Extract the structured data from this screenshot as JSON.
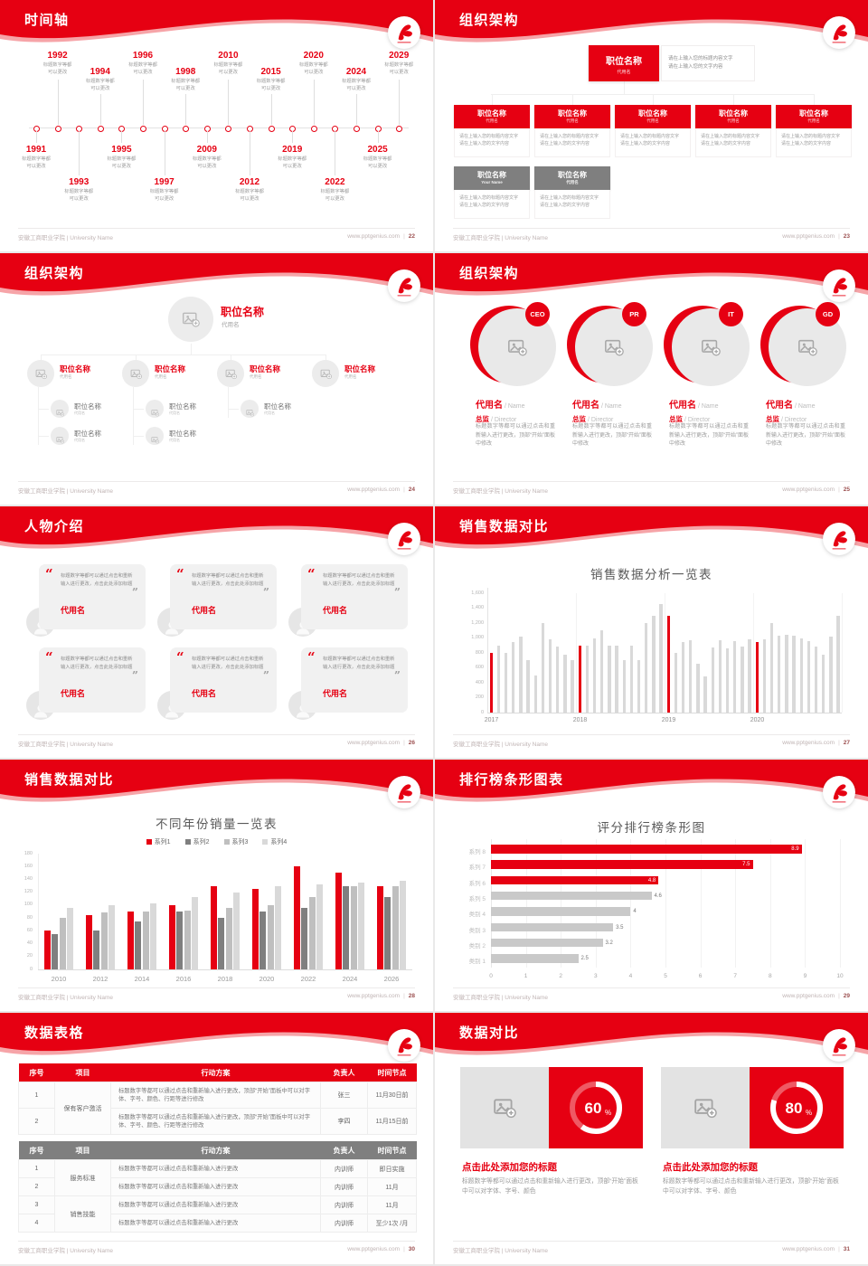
{
  "footer": {
    "left": "安徽工商职业学院 | University Name",
    "site": "www.pptgenius.com",
    "sep": "|"
  },
  "colors": {
    "red": "#e60012",
    "red_shadow": "#ee5a60",
    "gray_dark": "#7f7f7f",
    "gray_mid": "#bfbfbf",
    "gray_light": "#d9d9d9",
    "page_bg": "#e9e9e9"
  },
  "icons": {
    "logo": "university-logo-icon",
    "picture": "picture-placeholder-icon",
    "person": "person-icon",
    "quote": "quote-icon"
  },
  "slides": [
    {
      "type": "timeline",
      "title": "时间轴",
      "page": "22",
      "note_line1": "标题数字等都",
      "note_line2": "可以更改",
      "items": [
        {
          "year": "1991",
          "pos": "b",
          "level": 1
        },
        {
          "year": "1992",
          "pos": "t",
          "level": 1
        },
        {
          "year": "1993",
          "pos": "b",
          "level": 2
        },
        {
          "year": "1994",
          "pos": "t",
          "level": 2
        },
        {
          "year": "1995",
          "pos": "b",
          "level": 1
        },
        {
          "year": "1996",
          "pos": "t",
          "level": 1
        },
        {
          "year": "1997",
          "pos": "b",
          "level": 2
        },
        {
          "year": "1998",
          "pos": "t",
          "level": 2
        },
        {
          "year": "2009",
          "pos": "b",
          "level": 1
        },
        {
          "year": "2010",
          "pos": "t",
          "level": 1
        },
        {
          "year": "2012",
          "pos": "b",
          "level": 2
        },
        {
          "year": "2015",
          "pos": "t",
          "level": 2
        },
        {
          "year": "2019",
          "pos": "b",
          "level": 1
        },
        {
          "year": "2020",
          "pos": "t",
          "level": 1
        },
        {
          "year": "2022",
          "pos": "b",
          "level": 2
        },
        {
          "year": "2024",
          "pos": "t",
          "level": 2
        },
        {
          "year": "2025",
          "pos": "b",
          "level": 1
        },
        {
          "year": "2029",
          "pos": "t",
          "level": 1
        }
      ]
    },
    {
      "type": "orgBoxes",
      "title": "组织架构",
      "page": "23",
      "root": {
        "title": "职位名称",
        "sub": "代用名"
      },
      "root_note": [
        "请在上输入您的标题内容文字",
        "请在上输入您的文字内容"
      ],
      "note": [
        "请在上输入您的标题内容文字",
        "请在上输入您的文字内容"
      ],
      "level2": [
        {
          "title": "职位名称",
          "sub": "代用名"
        },
        {
          "title": "职位名称",
          "sub": "代用名"
        },
        {
          "title": "职位名称",
          "sub": "代用名"
        },
        {
          "title": "职位名称",
          "sub": "代用名"
        },
        {
          "title": "职位名称",
          "sub": "代用名"
        }
      ],
      "level3": [
        {
          "title": "职位名称",
          "sub": "Your Name"
        },
        {
          "title": "职位名称",
          "sub": "代用名"
        }
      ]
    },
    {
      "type": "orgTree",
      "title": "组织架构",
      "page": "24",
      "root": {
        "title": "职位名称",
        "sub": "代用名"
      },
      "children": [
        {
          "title": "职位名称",
          "sub": "代用名",
          "subs": [
            {
              "title": "职位名称",
              "sub": "代用名"
            },
            {
              "title": "职位名称",
              "sub": "代用名"
            }
          ]
        },
        {
          "title": "职位名称",
          "sub": "代用名",
          "subs": [
            {
              "title": "职位名称",
              "sub": "代用名"
            },
            {
              "title": "职位名称",
              "sub": "代用名"
            }
          ]
        },
        {
          "title": "职位名称",
          "sub": "代用名",
          "subs": [
            {
              "title": "职位名称",
              "sub": "代用名"
            }
          ]
        },
        {
          "title": "职位名称",
          "sub": "代用名",
          "subs": []
        }
      ]
    },
    {
      "type": "orgCircles",
      "title": "组织架构",
      "page": "25",
      "body": "标题数字等都可以通过点击和重新输入进行更改，顶部“开始”面板中修改",
      "items": [
        {
          "badge": "CEO",
          "name": "代用名",
          "name_en": " / Name",
          "role": "总监",
          "role_en": " / Director"
        },
        {
          "badge": "PR",
          "name": "代用名",
          "name_en": " / Name",
          "role": "总监",
          "role_en": " / Director"
        },
        {
          "badge": "IT",
          "name": "代用名",
          "name_en": " / Name",
          "role": "总监",
          "role_en": " / Director"
        },
        {
          "badge": "GD",
          "name": "代用名",
          "name_en": " / Name",
          "role": "总监",
          "role_en": " / Director"
        }
      ]
    },
    {
      "type": "people",
      "title": "人物介绍",
      "page": "26",
      "cards": [
        {
          "quote": "标题数字等都可以通过点击和重新输入进行更改，点击此处添加标题",
          "name": "代用名"
        },
        {
          "quote": "标题数字等都可以通过点击和重新输入进行更改，点击此处添加标题",
          "name": "代用名"
        },
        {
          "quote": "标题数字等都可以通过点击和重新输入进行更改，点击此处添加标题",
          "name": "代用名"
        },
        {
          "quote": "标题数字等都可以通过点击和重新输入进行更改，点击此处添加标题",
          "name": "代用名"
        },
        {
          "quote": "标题数字等都可以通过点击和重新输入进行更改，点击此处添加标题",
          "name": "代用名"
        },
        {
          "quote": "标题数字等都可以通过点击和重新输入进行更改，点击此处添加标题",
          "name": "代用名"
        }
      ]
    },
    {
      "type": "chartMonthly",
      "title": "销售数据对比",
      "page": "27",
      "chart_ref": 0
    },
    {
      "type": "chartGrouped",
      "title": "销售数据对比",
      "page": "28",
      "chart_ref": 1
    },
    {
      "type": "chartHbar",
      "title": "排行榜条形图表",
      "page": "29",
      "chart_ref": 2
    },
    {
      "type": "tables",
      "title": "数据表格",
      "page": "30",
      "columns": [
        "序号",
        "项目",
        "行动方案",
        "负责人",
        "时间节点"
      ],
      "table1": {
        "header_color": "#e60012",
        "rows": [
          {
            "no": "1",
            "project": "保有客户激活",
            "span": 2,
            "plan": "标题数字等都可以通过点击和重新输入进行更改，顶部“开始”面板中可以对字体、字号、颜色、行距等进行修改",
            "owner": "张三",
            "time": "11月30日前"
          },
          {
            "no": "2",
            "project": "",
            "plan": "标题数字等都可以通过点击和重新输入进行更改，顶部“开始”面板中可以对字体、字号、颜色、行距等进行修改",
            "owner": "李四",
            "time": "11月15日前"
          }
        ]
      },
      "table2": {
        "header_color": "#7f7f7f",
        "rows": [
          {
            "no": "1",
            "project": "服务标准",
            "span": 2,
            "plan": "标题数字等都可以通过点击和重新输入进行更改",
            "owner": "内训师",
            "time": "即日实施"
          },
          {
            "no": "2",
            "project": "",
            "plan": "标题数字等都可以通过点击和重新输入进行更改",
            "owner": "内训师",
            "time": "11月"
          },
          {
            "no": "3",
            "project": "销售技能",
            "span": 2,
            "plan": "标题数字等都可以通过点击和重新输入进行更改",
            "owner": "内训师",
            "time": "11月"
          },
          {
            "no": "4",
            "project": "",
            "plan": "标题数字等都可以通过点击和重新输入进行更改",
            "owner": "内训师",
            "time": "至少1次 /月"
          }
        ]
      }
    },
    {
      "type": "donuts",
      "title": "数据对比",
      "page": "31",
      "chart_ref": 3,
      "panels": [
        {
          "title": "点击此处添加您的标题",
          "body": "标题数字等都可以通过点击和重新输入进行更改，顶部“开始”面板中可以对字体、字号、颜色"
        },
        {
          "title": "点击此处添加您的标题",
          "body": "标题数字等都可以通过点击和重新输入进行更改，顶部“开始”面板中可以对字体、字号、颜色"
        }
      ]
    }
  ],
  "chart_data": [
    {
      "type": "bar",
      "title": "销售数据分析一览表",
      "x_group_labels": [
        "2017",
        "2018",
        "2019",
        "2020"
      ],
      "red_indices": [
        0,
        12,
        24,
        36
      ],
      "values": [
        800,
        900,
        800,
        950,
        1020,
        700,
        500,
        1200,
        980,
        890,
        780,
        700,
        900,
        900,
        1000,
        1100,
        900,
        900,
        700,
        900,
        700,
        1200,
        1300,
        1450,
        1300,
        800,
        950,
        970,
        660,
        490,
        870,
        975,
        860,
        960,
        890,
        980,
        950,
        980,
        1200,
        1030,
        1040,
        1030,
        990,
        960,
        890,
        780,
        1020,
        1300
      ],
      "ylim": [
        0,
        1600
      ],
      "yticks": [
        "0",
        "200",
        "400",
        "600",
        "800",
        "1,000",
        "1,200",
        "1,400",
        "1,600"
      ],
      "bar_color": "#d9d9d9",
      "highlight_color": "#e60012",
      "legend_position": "none",
      "grid": "light-vertical"
    },
    {
      "type": "bar",
      "title": "不同年份销量一览表",
      "categories": [
        "2010",
        "2012",
        "2014",
        "2016",
        "2018",
        "2020",
        "2022",
        "2024",
        "2026"
      ],
      "series": [
        {
          "name": "系列1",
          "color": "#e60012",
          "values": [
            60,
            85,
            90,
            100,
            130,
            125,
            160,
            150,
            130
          ]
        },
        {
          "name": "系列2",
          "color": "#7f7f7f",
          "values": [
            55,
            60,
            75,
            90,
            80,
            90,
            95,
            130,
            112
          ]
        },
        {
          "name": "系列3",
          "color": "#bfbfbf",
          "values": [
            80,
            88,
            90,
            92,
            95,
            100,
            112,
            130,
            130
          ]
        },
        {
          "name": "系列4",
          "color": "#d9d9d9",
          "values": [
            95,
            100,
            103,
            112,
            120,
            130,
            132,
            135,
            138
          ]
        }
      ],
      "ylim": [
        0,
        180
      ],
      "yticks": [
        "0",
        "20",
        "40",
        "60",
        "80",
        "100",
        "120",
        "140",
        "160",
        "180"
      ],
      "legend_position": "top"
    },
    {
      "type": "hbar",
      "title": "评分排行榜条形图",
      "categories": [
        "系列 8",
        "系列 7",
        "系列 6",
        "系列 5",
        "类别 4",
        "类别 3",
        "类别 2",
        "类别 1"
      ],
      "values": [
        8.9,
        7.5,
        4.8,
        4.6,
        4,
        3.5,
        3.2,
        2.5
      ],
      "value_labels": [
        "8.9",
        "7.5",
        "4.8",
        "4.6",
        "4",
        "3.5",
        "3.2",
        "2.5"
      ],
      "colors": [
        "#e60012",
        "#e60012",
        "#e60012",
        "#c9c9c9",
        "#c9c9c9",
        "#c9c9c9",
        "#c9c9c9",
        "#c9c9c9"
      ],
      "xlim": [
        0,
        10
      ],
      "xticks": [
        "0",
        "1",
        "2",
        "3",
        "4",
        "5",
        "6",
        "7",
        "8",
        "9",
        "10"
      ]
    },
    {
      "type": "donut",
      "items": [
        {
          "pct": 60,
          "label": "60",
          "unit": "%"
        },
        {
          "pct": 80,
          "label": "80",
          "unit": "%"
        }
      ]
    }
  ]
}
